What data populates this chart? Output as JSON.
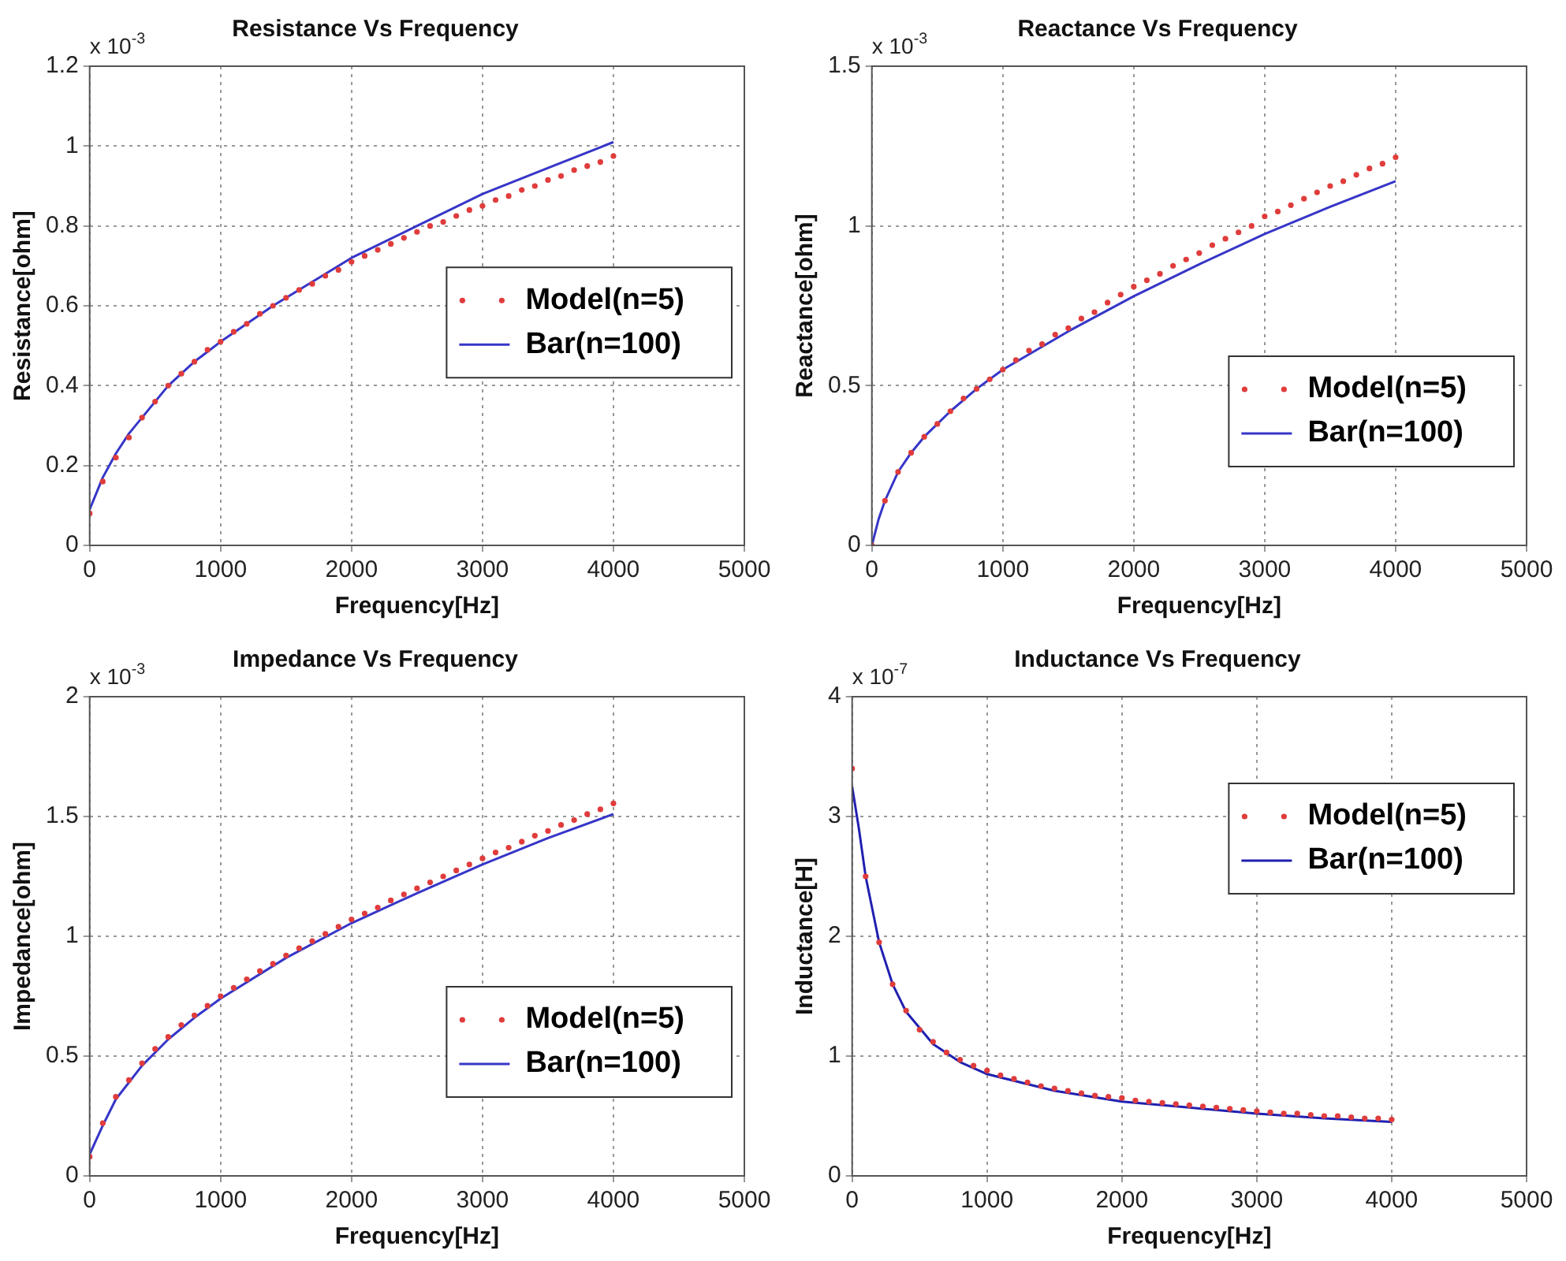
{
  "chart_data": [
    {
      "type": "line",
      "title": "Resistance Vs Frequency",
      "xlabel": "Frequency[Hz]",
      "ylabel": "Resistance[ohm]",
      "annotations": [
        "x 10$^{-3}$"
      ],
      "xlim": [
        0,
        5000
      ],
      "xticks": [
        0,
        1000,
        2000,
        3000,
        4000,
        5000
      ],
      "ylim": [
        0,
        1.2
      ],
      "yticks": [
        0,
        0.2,
        0.4,
        0.6,
        0.8,
        1,
        1.2
      ],
      "grid": true,
      "legend": "right",
      "series": [
        {
          "name": "Model(n=5)",
          "type": "scatter",
          "color": "#e03c3c",
          "x": [
            0,
            100,
            200,
            300,
            400,
            500,
            600,
            700,
            800,
            900,
            1000,
            1100,
            1200,
            1300,
            1400,
            1500,
            1600,
            1700,
            1800,
            1900,
            2000,
            2100,
            2200,
            2300,
            2400,
            2500,
            2600,
            2700,
            2800,
            2900,
            3000,
            3100,
            3200,
            3300,
            3400,
            3500,
            3600,
            3700,
            3800,
            3900,
            4000
          ],
          "values": [
            0.08,
            0.16,
            0.22,
            0.27,
            0.32,
            0.36,
            0.4,
            0.43,
            0.46,
            0.49,
            0.51,
            0.535,
            0.555,
            0.58,
            0.6,
            0.62,
            0.64,
            0.655,
            0.675,
            0.69,
            0.71,
            0.725,
            0.74,
            0.755,
            0.77,
            0.785,
            0.8,
            0.81,
            0.825,
            0.84,
            0.85,
            0.865,
            0.875,
            0.89,
            0.9,
            0.915,
            0.925,
            0.94,
            0.95,
            0.96,
            0.975
          ]
        },
        {
          "name": "Bar(n=100)",
          "type": "line",
          "color": "#3636c8",
          "x": [
            0,
            100,
            200,
            300,
            400,
            500,
            600,
            700,
            800,
            1000,
            1200,
            1400,
            1600,
            1800,
            2000,
            2500,
            3000,
            3500,
            4000
          ],
          "values": [
            0.09,
            0.17,
            0.23,
            0.28,
            0.32,
            0.36,
            0.4,
            0.43,
            0.46,
            0.51,
            0.555,
            0.6,
            0.64,
            0.68,
            0.72,
            0.8,
            0.88,
            0.945,
            1.01
          ]
        }
      ]
    },
    {
      "type": "line",
      "title": "Reactance Vs Frequency",
      "xlabel": "Frequency[Hz]",
      "ylabel": "Reactance[ohm]",
      "annotations": [
        "x 10$^{-3}$"
      ],
      "xlim": [
        0,
        5000
      ],
      "xticks": [
        0,
        1000,
        2000,
        3000,
        4000,
        5000
      ],
      "ylim": [
        0,
        1.5
      ],
      "yticks": [
        0,
        0.5,
        1,
        1.5
      ],
      "grid": true,
      "legend": "bottom right",
      "series": [
        {
          "name": "Model(n=5)",
          "type": "scatter",
          "color": "#e03c3c",
          "x": [
            0,
            100,
            200,
            300,
            400,
            500,
            600,
            700,
            800,
            900,
            1000,
            1100,
            1200,
            1300,
            1400,
            1500,
            1600,
            1700,
            1800,
            1900,
            2000,
            2100,
            2200,
            2300,
            2400,
            2500,
            2600,
            2700,
            2800,
            2900,
            3000,
            3100,
            3200,
            3300,
            3400,
            3500,
            3600,
            3700,
            3800,
            3900,
            4000
          ],
          "values": [
            0,
            0.14,
            0.23,
            0.29,
            0.34,
            0.38,
            0.42,
            0.46,
            0.49,
            0.52,
            0.55,
            0.58,
            0.61,
            0.63,
            0.66,
            0.68,
            0.71,
            0.73,
            0.76,
            0.785,
            0.81,
            0.83,
            0.85,
            0.875,
            0.895,
            0.915,
            0.94,
            0.96,
            0.98,
            1.0,
            1.03,
            1.045,
            1.065,
            1.085,
            1.105,
            1.125,
            1.14,
            1.16,
            1.18,
            1.195,
            1.215
          ]
        },
        {
          "name": "Bar(n=100)",
          "type": "line",
          "color": "#3636c8",
          "x": [
            0,
            50,
            100,
            200,
            300,
            400,
            600,
            800,
            1000,
            1500,
            2000,
            2500,
            3000,
            3500,
            4000
          ],
          "values": [
            0,
            0.08,
            0.14,
            0.23,
            0.29,
            0.34,
            0.42,
            0.49,
            0.55,
            0.67,
            0.78,
            0.88,
            0.975,
            1.06,
            1.14
          ]
        }
      ]
    },
    {
      "type": "line",
      "title": "Impedance Vs Frequency",
      "xlabel": "Frequency[Hz]",
      "ylabel": "Impedance[ohm]",
      "annotations": [
        "x 10$^{-3}$"
      ],
      "xlim": [
        0,
        5000
      ],
      "xticks": [
        0,
        1000,
        2000,
        3000,
        4000,
        5000
      ],
      "ylim": [
        0,
        2
      ],
      "yticks": [
        0,
        0.5,
        1,
        1.5,
        2
      ],
      "grid": true,
      "legend": "bottom right",
      "series": [
        {
          "name": "Model(n=5)",
          "type": "scatter",
          "color": "#e03c3c",
          "x": [
            0,
            100,
            200,
            300,
            400,
            500,
            600,
            700,
            800,
            900,
            1000,
            1100,
            1200,
            1300,
            1400,
            1500,
            1600,
            1700,
            1800,
            1900,
            2000,
            2100,
            2200,
            2300,
            2400,
            2500,
            2600,
            2700,
            2800,
            2900,
            3000,
            3100,
            3200,
            3300,
            3400,
            3500,
            3600,
            3700,
            3800,
            3900,
            4000
          ],
          "values": [
            0.08,
            0.22,
            0.33,
            0.4,
            0.47,
            0.53,
            0.58,
            0.63,
            0.67,
            0.71,
            0.75,
            0.785,
            0.82,
            0.855,
            0.885,
            0.92,
            0.95,
            0.98,
            1.01,
            1.04,
            1.07,
            1.095,
            1.12,
            1.15,
            1.175,
            1.2,
            1.225,
            1.25,
            1.275,
            1.3,
            1.325,
            1.35,
            1.37,
            1.395,
            1.42,
            1.44,
            1.465,
            1.485,
            1.51,
            1.53,
            1.555
          ]
        },
        {
          "name": "Bar(n=100)",
          "type": "line",
          "color": "#3636c8",
          "x": [
            0,
            100,
            200,
            400,
            600,
            800,
            1000,
            1500,
            2000,
            2500,
            3000,
            3500,
            4000
          ],
          "values": [
            0.09,
            0.21,
            0.32,
            0.46,
            0.57,
            0.66,
            0.74,
            0.91,
            1.055,
            1.18,
            1.3,
            1.41,
            1.51
          ]
        }
      ]
    },
    {
      "type": "line",
      "title": "Inductance Vs Frequency",
      "xlabel": "Frequency[Hz]",
      "ylabel": "Inductance[H]",
      "annotations": [
        "x 10$^{-7}$"
      ],
      "xlim": [
        0,
        5000
      ],
      "xticks": [
        0,
        1000,
        2000,
        3000,
        4000,
        5000
      ],
      "ylim": [
        0,
        4
      ],
      "yticks": [
        0,
        1,
        2,
        3,
        4
      ],
      "grid": true,
      "legend": "top right",
      "series": [
        {
          "name": "Model(n=5)",
          "type": "scatter",
          "color": "#e03c3c",
          "x": [
            0,
            100,
            200,
            300,
            400,
            500,
            600,
            700,
            800,
            900,
            1000,
            1100,
            1200,
            1300,
            1400,
            1500,
            1600,
            1700,
            1800,
            1900,
            2000,
            2100,
            2200,
            2300,
            2400,
            2500,
            2600,
            2700,
            2800,
            2900,
            3000,
            3100,
            3200,
            3300,
            3400,
            3500,
            3600,
            3700,
            3800,
            3900,
            4000
          ],
          "values": [
            3.4,
            2.5,
            1.95,
            1.6,
            1.38,
            1.22,
            1.12,
            1.03,
            0.97,
            0.92,
            0.88,
            0.84,
            0.81,
            0.78,
            0.75,
            0.73,
            0.71,
            0.69,
            0.67,
            0.66,
            0.65,
            0.63,
            0.62,
            0.61,
            0.6,
            0.59,
            0.58,
            0.57,
            0.56,
            0.55,
            0.54,
            0.53,
            0.52,
            0.52,
            0.51,
            0.5,
            0.5,
            0.49,
            0.48,
            0.48,
            0.47
          ]
        },
        {
          "name": "Bar(n=100)",
          "type": "line",
          "color": "#2020b0",
          "x": [
            0,
            50,
            100,
            200,
            300,
            400,
            600,
            800,
            1000,
            1500,
            2000,
            2500,
            3000,
            3500,
            4000
          ],
          "values": [
            3.25,
            2.9,
            2.5,
            1.95,
            1.6,
            1.37,
            1.1,
            0.95,
            0.85,
            0.71,
            0.62,
            0.57,
            0.52,
            0.48,
            0.45
          ]
        }
      ]
    }
  ]
}
